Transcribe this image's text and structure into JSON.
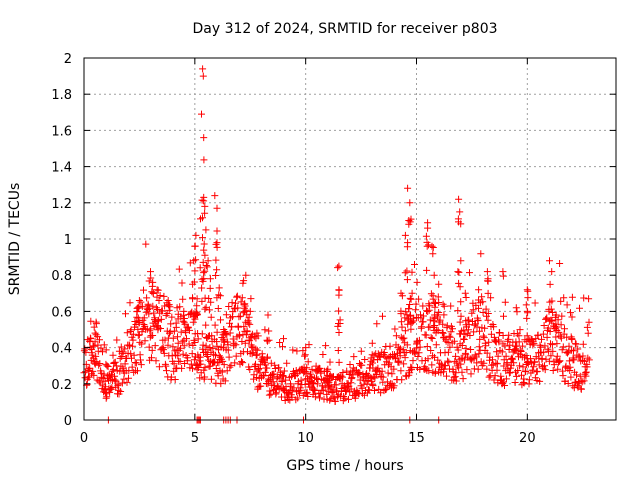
{
  "chart_data": {
    "type": "scatter",
    "title": "Day 312 of 2024, SRMTID for receiver p803",
    "xlabel": "GPS time / hours",
    "ylabel": "SRMTID / TECUs",
    "xlim": [
      0,
      24
    ],
    "ylim": [
      0,
      2
    ],
    "x_ticks": [
      0,
      5,
      10,
      15,
      20
    ],
    "x_tick_labels": [
      "0",
      "5",
      "10",
      "15",
      "20"
    ],
    "y_ticks": [
      0,
      0.2,
      0.4,
      0.6,
      0.8,
      1,
      1.2,
      1.4,
      1.6,
      1.8,
      2
    ],
    "y_tick_labels": [
      "0",
      "0.2",
      "0.4",
      "0.6",
      "0.8",
      "1",
      "1.2",
      "1.4",
      "1.6",
      "1.8",
      "2"
    ],
    "grid": true,
    "marker": "plus",
    "series": [
      {
        "name": "SRMTID",
        "color": "#ff0000",
        "baseline": [
          [
            0.0,
            0.3
          ],
          [
            0.5,
            0.38
          ],
          [
            1.0,
            0.2
          ],
          [
            1.5,
            0.22
          ],
          [
            2.0,
            0.3
          ],
          [
            2.5,
            0.45
          ],
          [
            3.0,
            0.55
          ],
          [
            3.5,
            0.45
          ],
          [
            4.0,
            0.35
          ],
          [
            4.5,
            0.4
          ],
          [
            5.0,
            0.4
          ],
          [
            5.5,
            0.35
          ],
          [
            6.0,
            0.3
          ],
          [
            6.5,
            0.35
          ],
          [
            7.0,
            0.5
          ],
          [
            7.5,
            0.35
          ],
          [
            8.0,
            0.25
          ],
          [
            8.5,
            0.22
          ],
          [
            9.0,
            0.18
          ],
          [
            9.5,
            0.18
          ],
          [
            10.0,
            0.2
          ],
          [
            10.5,
            0.2
          ],
          [
            11.0,
            0.18
          ],
          [
            11.5,
            0.16
          ],
          [
            12.0,
            0.18
          ],
          [
            12.5,
            0.22
          ],
          [
            13.0,
            0.25
          ],
          [
            13.5,
            0.25
          ],
          [
            14.0,
            0.3
          ],
          [
            14.5,
            0.38
          ],
          [
            15.0,
            0.45
          ],
          [
            15.5,
            0.45
          ],
          [
            16.0,
            0.4
          ],
          [
            16.5,
            0.35
          ],
          [
            17.0,
            0.35
          ],
          [
            17.5,
            0.4
          ],
          [
            18.0,
            0.45
          ],
          [
            18.5,
            0.35
          ],
          [
            19.0,
            0.3
          ],
          [
            19.5,
            0.35
          ],
          [
            20.0,
            0.3
          ],
          [
            20.5,
            0.32
          ],
          [
            21.0,
            0.42
          ],
          [
            21.5,
            0.38
          ],
          [
            22.0,
            0.3
          ],
          [
            22.5,
            0.28
          ],
          [
            22.8,
            0.38
          ]
        ],
        "spikes": [
          [
            0.3,
            0.45
          ],
          [
            0.5,
            0.48
          ],
          [
            1.0,
            0.12
          ],
          [
            2.4,
            0.6
          ],
          [
            2.5,
            0.66
          ],
          [
            3.0,
            0.82
          ],
          [
            3.1,
            0.76
          ],
          [
            3.3,
            0.72
          ],
          [
            3.8,
            0.66
          ],
          [
            4.2,
            0.62
          ],
          [
            4.5,
            0.6
          ],
          [
            4.9,
            0.75
          ],
          [
            4.95,
            0.88
          ],
          [
            5.0,
            0.96
          ],
          [
            5.05,
            1.02
          ],
          [
            5.1,
            0.67
          ],
          [
            5.35,
            1.94
          ],
          [
            5.38,
            1.9
          ],
          [
            5.3,
            1.69
          ],
          [
            5.4,
            1.56
          ],
          [
            5.4,
            1.23
          ],
          [
            5.45,
            1.18
          ],
          [
            5.5,
            1.05
          ],
          [
            5.6,
            0.88
          ],
          [
            5.7,
            0.78
          ],
          [
            5.9,
            1.24
          ],
          [
            6.0,
            1.17
          ],
          [
            6.0,
            0.98
          ],
          [
            6.1,
            0.73
          ],
          [
            6.3,
            0.5
          ],
          [
            7.2,
            0.77
          ],
          [
            7.3,
            0.8
          ],
          [
            7.5,
            0.6
          ],
          [
            7.8,
            0.48
          ],
          [
            8.3,
            0.58
          ],
          [
            9.0,
            0.45
          ],
          [
            10.0,
            0.4
          ],
          [
            11.0,
            0.28
          ],
          [
            11.1,
            0.32
          ],
          [
            11.5,
            0.85
          ],
          [
            11.5,
            0.72
          ],
          [
            11.5,
            0.69
          ],
          [
            13.0,
            0.36
          ],
          [
            14.3,
            0.7
          ],
          [
            14.5,
            1.02
          ],
          [
            14.6,
            0.98
          ],
          [
            14.6,
            1.28
          ],
          [
            14.7,
            1.2
          ],
          [
            14.75,
            1.11
          ],
          [
            14.8,
            0.7
          ],
          [
            15.0,
            0.42
          ],
          [
            15.5,
            1.09
          ],
          [
            15.5,
            1.06
          ],
          [
            15.7,
            0.96
          ],
          [
            15.8,
            0.8
          ],
          [
            15.8,
            0.65
          ],
          [
            16.0,
            0.75
          ],
          [
            16.2,
            0.64
          ],
          [
            16.9,
            1.22
          ],
          [
            16.95,
            1.15
          ],
          [
            17.0,
            0.88
          ],
          [
            17.2,
            0.7
          ],
          [
            17.8,
            0.72
          ],
          [
            18.2,
            0.82
          ],
          [
            18.9,
            0.82
          ],
          [
            19.5,
            0.62
          ],
          [
            20.0,
            0.72
          ],
          [
            20.0,
            0.6
          ],
          [
            21.0,
            0.88
          ],
          [
            21.1,
            0.82
          ],
          [
            21.3,
            0.58
          ],
          [
            22.0,
            0.45
          ]
        ],
        "zeros": [
          1.1,
          5.1,
          5.15,
          5.2,
          5.25,
          6.3,
          6.4,
          6.5,
          6.6,
          6.9,
          9.9,
          14.7,
          16.0
        ]
      }
    ]
  }
}
